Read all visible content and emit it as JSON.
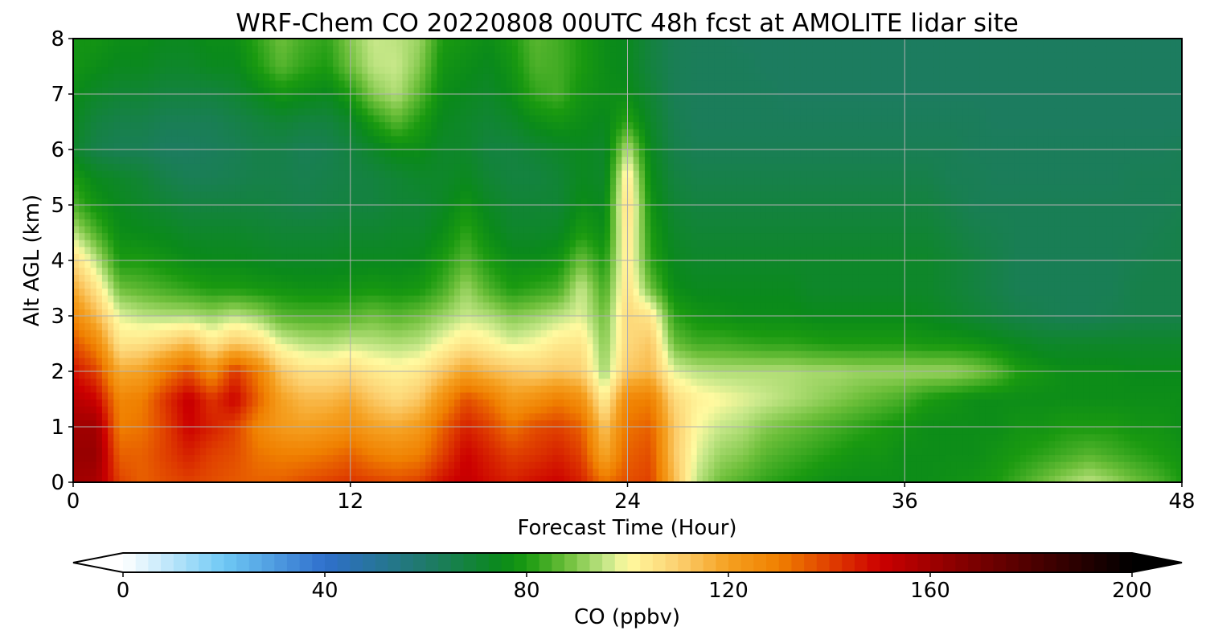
{
  "chart_data": {
    "type": "heatmap",
    "title": "WRF-Chem CO  20220808 00UTC 48h fcst at AMOLITE lidar site",
    "xlabel": "Forecast Time (Hour)",
    "ylabel": "Alt AGL (km)",
    "xlim": [
      0,
      48
    ],
    "ylim": [
      0,
      8
    ],
    "x_ticks": [
      0,
      12,
      24,
      36,
      48
    ],
    "y_ticks": [
      0,
      1,
      2,
      3,
      4,
      5,
      6,
      7,
      8
    ],
    "grid": true,
    "x": [
      0,
      1,
      2,
      3,
      4,
      5,
      6,
      7,
      8,
      9,
      10,
      11,
      12,
      13,
      14,
      15,
      16,
      17,
      18,
      19,
      20,
      21,
      22,
      23,
      24,
      25,
      26,
      27,
      28,
      29,
      30,
      31,
      32,
      33,
      34,
      35,
      36,
      37,
      38,
      39,
      40,
      41,
      42,
      43,
      44,
      45,
      46,
      47,
      48
    ],
    "y": [
      0,
      0.5,
      1,
      1.5,
      2,
      2.5,
      3,
      3.5,
      4,
      4.5,
      5,
      5.5,
      6,
      6.5,
      7,
      7.5,
      8
    ],
    "z": [
      [
        160,
        158,
        140,
        135,
        138,
        140,
        138,
        136,
        135,
        135,
        138,
        140,
        142,
        140,
        138,
        140,
        148,
        152,
        148,
        145,
        148,
        150,
        145,
        132,
        138,
        140,
        115,
        95,
        88,
        85,
        82,
        80,
        78,
        76,
        76,
        76,
        76,
        76,
        77,
        78,
        80,
        84,
        88,
        92,
        95,
        92,
        88,
        85,
        80
      ],
      [
        162,
        162,
        135,
        135,
        140,
        145,
        140,
        138,
        132,
        130,
        130,
        132,
        135,
        130,
        128,
        130,
        140,
        150,
        145,
        140,
        142,
        145,
        140,
        118,
        135,
        138,
        112,
        98,
        92,
        90,
        86,
        84,
        82,
        80,
        78,
        78,
        76,
        76,
        76,
        76,
        78,
        80,
        82,
        84,
        86,
        84,
        82,
        80,
        78
      ],
      [
        160,
        160,
        130,
        132,
        140,
        150,
        145,
        140,
        128,
        122,
        120,
        122,
        125,
        120,
        118,
        122,
        135,
        145,
        140,
        132,
        138,
        140,
        135,
        112,
        132,
        135,
        112,
        100,
        96,
        94,
        90,
        88,
        86,
        84,
        82,
        80,
        78,
        76,
        76,
        76,
        76,
        78,
        78,
        80,
        80,
        80,
        78,
        78,
        76
      ],
      [
        155,
        150,
        128,
        130,
        142,
        152,
        142,
        150,
        135,
        120,
        115,
        115,
        118,
        112,
        108,
        112,
        125,
        138,
        132,
        122,
        125,
        130,
        125,
        102,
        128,
        130,
        108,
        102,
        100,
        98,
        96,
        94,
        92,
        90,
        88,
        86,
        84,
        80,
        78,
        76,
        76,
        76,
        76,
        76,
        76,
        76,
        76,
        76,
        76
      ],
      [
        148,
        140,
        118,
        120,
        130,
        138,
        125,
        142,
        130,
        112,
        106,
        106,
        108,
        104,
        102,
        104,
        112,
        120,
        115,
        112,
        110,
        112,
        110,
        92,
        112,
        115,
        98,
        95,
        94,
        94,
        94,
        94,
        93,
        93,
        92,
        92,
        92,
        92,
        92,
        90,
        86,
        80,
        78,
        76,
        76,
        76,
        75,
        75,
        75
      ],
      [
        138,
        128,
        105,
        106,
        110,
        115,
        105,
        112,
        108,
        98,
        95,
        94,
        96,
        95,
        94,
        95,
        100,
        105,
        102,
        98,
        100,
        104,
        105,
        90,
        108,
        112,
        88,
        84,
        84,
        83,
        82,
        82,
        81,
        80,
        80,
        80,
        80,
        79,
        79,
        78,
        76,
        74,
        72,
        72,
        72,
        72,
        72,
        72,
        72
      ],
      [
        128,
        115,
        98,
        95,
        94,
        94,
        92,
        95,
        92,
        86,
        85,
        85,
        86,
        88,
        86,
        88,
        92,
        96,
        94,
        90,
        92,
        95,
        98,
        88,
        108,
        105,
        82,
        78,
        77,
        76,
        76,
        76,
        75,
        75,
        75,
        75,
        75,
        74,
        72,
        70,
        68,
        66,
        65,
        64,
        64,
        65,
        66,
        66,
        66
      ],
      [
        118,
        105,
        88,
        86,
        84,
        82,
        80,
        80,
        79,
        78,
        77,
        77,
        78,
        79,
        78,
        79,
        84,
        92,
        85,
        80,
        82,
        84,
        96,
        84,
        106,
        88,
        76,
        74,
        74,
        74,
        74,
        74,
        72,
        72,
        72,
        72,
        72,
        72,
        70,
        68,
        66,
        64,
        64,
        64,
        64,
        64,
        66,
        66,
        66
      ],
      [
        108,
        95,
        80,
        80,
        78,
        76,
        75,
        75,
        74,
        73,
        73,
        73,
        74,
        74,
        74,
        75,
        80,
        86,
        80,
        76,
        76,
        78,
        88,
        80,
        105,
        82,
        74,
        72,
        72,
        72,
        72,
        72,
        72,
        72,
        72,
        72,
        72,
        72,
        70,
        68,
        66,
        64,
        64,
        64,
        64,
        64,
        65,
        66,
        66
      ],
      [
        95,
        85,
        76,
        75,
        74,
        72,
        72,
        72,
        71,
        70,
        70,
        70,
        71,
        71,
        72,
        72,
        76,
        82,
        76,
        72,
        72,
        73,
        80,
        76,
        106,
        80,
        72,
        70,
        70,
        70,
        70,
        70,
        70,
        70,
        70,
        70,
        70,
        70,
        68,
        66,
        65,
        64,
        64,
        64,
        64,
        64,
        64,
        65,
        66
      ],
      [
        85,
        78,
        74,
        72,
        70,
        68,
        68,
        68,
        68,
        67,
        66,
        67,
        68,
        68,
        70,
        70,
        73,
        78,
        73,
        70,
        70,
        70,
        76,
        74,
        108,
        78,
        70,
        68,
        68,
        68,
        68,
        68,
        68,
        68,
        68,
        68,
        68,
        68,
        66,
        64,
        64,
        64,
        64,
        64,
        64,
        64,
        64,
        64,
        65
      ],
      [
        80,
        74,
        72,
        70,
        66,
        64,
        64,
        65,
        66,
        66,
        65,
        66,
        67,
        68,
        70,
        72,
        72,
        74,
        70,
        68,
        68,
        70,
        74,
        72,
        105,
        76,
        68,
        66,
        66,
        66,
        66,
        66,
        66,
        66,
        66,
        66,
        66,
        66,
        64,
        64,
        63,
        63,
        63,
        63,
        63,
        63,
        64,
        64,
        64
      ],
      [
        72,
        66,
        64,
        64,
        62,
        62,
        63,
        64,
        66,
        66,
        64,
        65,
        68,
        72,
        76,
        76,
        72,
        72,
        68,
        68,
        70,
        72,
        74,
        72,
        95,
        74,
        66,
        64,
        64,
        64,
        64,
        64,
        64,
        64,
        64,
        64,
        64,
        64,
        64,
        63,
        63,
        63,
        63,
        63,
        63,
        63,
        63,
        63,
        64
      ],
      [
        74,
        68,
        66,
        66,
        64,
        64,
        64,
        66,
        68,
        70,
        68,
        68,
        72,
        80,
        86,
        80,
        74,
        72,
        70,
        72,
        76,
        78,
        76,
        74,
        82,
        72,
        65,
        63,
        63,
        63,
        63,
        63,
        63,
        63,
        63,
        63,
        63,
        63,
        63,
        63,
        62,
        62,
        62,
        62,
        62,
        62,
        62,
        62,
        62
      ],
      [
        76,
        72,
        70,
        70,
        68,
        68,
        68,
        70,
        74,
        78,
        76,
        74,
        80,
        90,
        94,
        86,
        76,
        74,
        72,
        76,
        82,
        84,
        78,
        76,
        76,
        70,
        64,
        63,
        63,
        63,
        63,
        62,
        62,
        62,
        62,
        62,
        62,
        62,
        62,
        62,
        62,
        62,
        62,
        62,
        62,
        62,
        62,
        62,
        62
      ],
      [
        78,
        76,
        74,
        74,
        72,
        72,
        74,
        74,
        80,
        86,
        82,
        80,
        88,
        95,
        96,
        90,
        78,
        76,
        74,
        78,
        85,
        84,
        80,
        76,
        74,
        68,
        64,
        63,
        63,
        63,
        62,
        62,
        62,
        62,
        62,
        62,
        62,
        62,
        62,
        62,
        62,
        62,
        62,
        62,
        62,
        62,
        62,
        62,
        62
      ],
      [
        78,
        78,
        76,
        76,
        74,
        74,
        76,
        76,
        82,
        88,
        84,
        82,
        90,
        96,
        95,
        92,
        80,
        78,
        76,
        80,
        86,
        84,
        80,
        76,
        74,
        68,
        64,
        63,
        63,
        62,
        62,
        62,
        62,
        62,
        62,
        62,
        62,
        62,
        62,
        62,
        62,
        62,
        62,
        62,
        62,
        62,
        62,
        62,
        62
      ]
    ],
    "colorbar": {
      "label": "CO  (ppbv)",
      "min": 0,
      "max": 200,
      "ticks": [
        0,
        40,
        80,
        120,
        160,
        200
      ],
      "extend": "both",
      "stops": [
        {
          "v": 0,
          "c": "#ffffff"
        },
        {
          "v": 20,
          "c": "#6fc9f5"
        },
        {
          "v": 40,
          "c": "#2f6fcc"
        },
        {
          "v": 60,
          "c": "#1f7a6a"
        },
        {
          "v": 75,
          "c": "#0a8a1a"
        },
        {
          "v": 80,
          "c": "#1a9a10"
        },
        {
          "v": 88,
          "c": "#6dbf3a"
        },
        {
          "v": 96,
          "c": "#c8e88a"
        },
        {
          "v": 100,
          "c": "#fffaa0"
        },
        {
          "v": 110,
          "c": "#fcd070"
        },
        {
          "v": 120,
          "c": "#f5a020"
        },
        {
          "v": 130,
          "c": "#f08000"
        },
        {
          "v": 140,
          "c": "#e04000"
        },
        {
          "v": 150,
          "c": "#cc0000"
        },
        {
          "v": 165,
          "c": "#8a0000"
        },
        {
          "v": 185,
          "c": "#3a0000"
        },
        {
          "v": 200,
          "c": "#000000"
        }
      ]
    }
  }
}
